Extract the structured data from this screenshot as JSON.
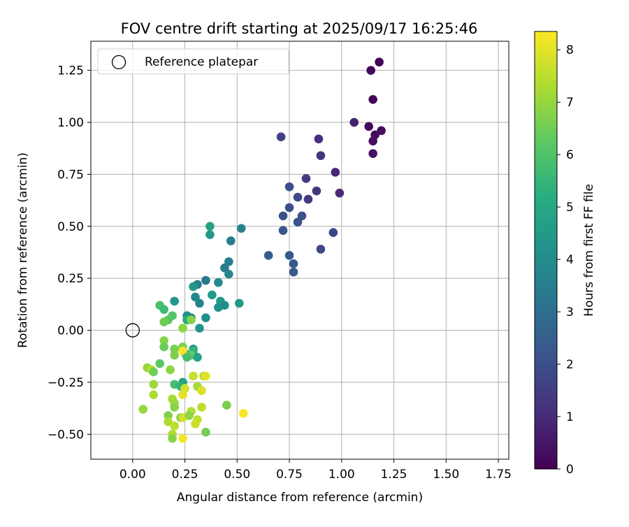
{
  "chart_data": {
    "type": "scatter",
    "title": "FOV centre drift starting at 2025/09/17 16:25:46",
    "xlabel": "Angular distance from reference (arcmin)",
    "ylabel": "Rotation from reference (arcmin)",
    "xlim": [
      -0.2,
      1.8
    ],
    "ylim": [
      -0.62,
      1.39
    ],
    "xticks": [
      0.0,
      0.25,
      0.5,
      0.75,
      1.0,
      1.25,
      1.5,
      1.75
    ],
    "xtick_labels": [
      "0.00",
      "0.25",
      "0.50",
      "0.75",
      "1.00",
      "1.25",
      "1.50",
      "1.75"
    ],
    "yticks": [
      -0.5,
      -0.25,
      0.0,
      0.25,
      0.5,
      0.75,
      1.0,
      1.25
    ],
    "ytick_labels": [
      "−0.50",
      "−0.25",
      "0.00",
      "0.25",
      "0.50",
      "0.75",
      "1.00",
      "1.25"
    ],
    "grid": true,
    "legend": {
      "position": "top-left",
      "entries": [
        "Reference platepar"
      ]
    },
    "reference_point": {
      "x": 0.0,
      "y": 0.0,
      "label": "Reference platepar"
    },
    "colorbar": {
      "label": "Hours from first FF file",
      "range": [
        0,
        8.35
      ],
      "ticks": [
        0,
        1,
        2,
        3,
        4,
        5,
        6,
        7,
        8
      ],
      "tick_labels": [
        "0",
        "1",
        "2",
        "3",
        "4",
        "5",
        "6",
        "7",
        "8"
      ],
      "colormap": "viridis"
    },
    "series": [
      {
        "name": "drift",
        "points": [
          [
            1.18,
            1.29,
            0.05
          ],
          [
            1.14,
            1.25,
            0.1
          ],
          [
            1.15,
            1.11,
            0.15
          ],
          [
            1.13,
            0.98,
            0.2
          ],
          [
            1.16,
            0.94,
            0.25
          ],
          [
            1.19,
            0.96,
            0.3
          ],
          [
            1.15,
            0.91,
            0.35
          ],
          [
            1.15,
            0.85,
            0.4
          ],
          [
            1.06,
            1.0,
            0.8
          ],
          [
            0.97,
            0.76,
            0.9
          ],
          [
            0.99,
            0.66,
            1.0
          ],
          [
            0.89,
            0.92,
            1.1
          ],
          [
            0.9,
            0.84,
            1.2
          ],
          [
            0.88,
            0.67,
            1.3
          ],
          [
            0.84,
            0.63,
            1.4
          ],
          [
            0.83,
            0.73,
            1.5
          ],
          [
            0.71,
            0.93,
            1.6
          ],
          [
            0.96,
            0.47,
            1.7
          ],
          [
            0.9,
            0.39,
            1.8
          ],
          [
            0.79,
            0.64,
            1.9
          ],
          [
            0.75,
            0.69,
            2.0
          ],
          [
            0.75,
            0.59,
            2.0
          ],
          [
            0.72,
            0.55,
            2.1
          ],
          [
            0.81,
            0.55,
            2.1
          ],
          [
            0.79,
            0.52,
            2.2
          ],
          [
            0.72,
            0.48,
            2.2
          ],
          [
            0.75,
            0.36,
            2.3
          ],
          [
            0.77,
            0.32,
            2.3
          ],
          [
            0.77,
            0.28,
            2.4
          ],
          [
            0.65,
            0.36,
            2.4
          ],
          [
            0.52,
            0.49,
            3.7
          ],
          [
            0.47,
            0.43,
            3.5
          ],
          [
            0.46,
            0.33,
            3.6
          ],
          [
            0.44,
            0.3,
            3.4
          ],
          [
            0.46,
            0.27,
            3.8
          ],
          [
            0.41,
            0.23,
            3.9
          ],
          [
            0.35,
            0.24,
            3.3
          ],
          [
            0.31,
            0.22,
            3.5
          ],
          [
            0.29,
            0.21,
            4.4
          ],
          [
            0.38,
            0.17,
            4.5
          ],
          [
            0.3,
            0.16,
            3.9
          ],
          [
            0.42,
            0.14,
            4.6
          ],
          [
            0.44,
            0.12,
            4.0
          ],
          [
            0.41,
            0.11,
            4.2
          ],
          [
            0.51,
            0.13,
            4.5
          ],
          [
            0.32,
            0.13,
            3.7
          ],
          [
            0.37,
            0.5,
            4.7
          ],
          [
            0.37,
            0.46,
            4.5
          ],
          [
            0.2,
            0.14,
            4.4
          ],
          [
            0.35,
            0.06,
            4.1
          ],
          [
            0.32,
            0.01,
            4.3
          ],
          [
            0.26,
            0.07,
            4.0
          ],
          [
            0.28,
            0.06,
            3.8
          ],
          [
            0.26,
            0.05,
            5.1
          ],
          [
            0.13,
            0.12,
            5.9
          ],
          [
            0.15,
            0.1,
            5.7
          ],
          [
            0.19,
            0.07,
            6.1
          ],
          [
            0.17,
            0.05,
            6.2
          ],
          [
            0.15,
            0.04,
            6.5
          ],
          [
            0.28,
            0.05,
            6.8
          ],
          [
            0.24,
            0.01,
            6.9
          ],
          [
            0.15,
            -0.05,
            6.8
          ],
          [
            0.15,
            -0.08,
            6.4
          ],
          [
            0.2,
            -0.09,
            6.6
          ],
          [
            0.24,
            -0.08,
            6.7
          ],
          [
            0.29,
            -0.09,
            4.5
          ],
          [
            0.29,
            -0.1,
            5.5
          ],
          [
            0.25,
            -0.11,
            5.2
          ],
          [
            0.28,
            -0.12,
            6.3
          ],
          [
            0.31,
            -0.13,
            4.8
          ],
          [
            0.2,
            -0.12,
            6.7
          ],
          [
            0.24,
            -0.1,
            8.3
          ],
          [
            0.26,
            -0.13,
            5.8
          ],
          [
            0.13,
            -0.16,
            6.2
          ],
          [
            0.07,
            -0.18,
            7.0
          ],
          [
            0.09,
            -0.19,
            7.4
          ],
          [
            0.1,
            -0.2,
            6.5
          ],
          [
            0.18,
            -0.19,
            6.9
          ],
          [
            0.24,
            -0.25,
            4.7
          ],
          [
            0.2,
            -0.26,
            5.8
          ],
          [
            0.1,
            -0.26,
            7.1
          ],
          [
            0.23,
            -0.27,
            5.4
          ],
          [
            0.29,
            -0.22,
            7.6
          ],
          [
            0.34,
            -0.22,
            7.4
          ],
          [
            0.35,
            -0.22,
            8.0
          ],
          [
            0.31,
            -0.27,
            7.2
          ],
          [
            0.25,
            -0.28,
            7.8
          ],
          [
            0.24,
            -0.31,
            8.0
          ],
          [
            0.33,
            -0.29,
            7.9
          ],
          [
            0.1,
            -0.31,
            7.3
          ],
          [
            0.19,
            -0.33,
            7.2
          ],
          [
            0.2,
            -0.35,
            7.1
          ],
          [
            0.2,
            -0.37,
            6.8
          ],
          [
            0.33,
            -0.37,
            7.5
          ],
          [
            0.05,
            -0.38,
            7.0
          ],
          [
            0.17,
            -0.41,
            6.7
          ],
          [
            0.17,
            -0.44,
            7.3
          ],
          [
            0.23,
            -0.42,
            6.6
          ],
          [
            0.24,
            -0.42,
            7.8
          ],
          [
            0.28,
            -0.39,
            7.4
          ],
          [
            0.27,
            -0.41,
            6.9
          ],
          [
            0.31,
            -0.43,
            7.6
          ],
          [
            0.3,
            -0.45,
            7.7
          ],
          [
            0.2,
            -0.46,
            7.5
          ],
          [
            0.19,
            -0.5,
            7.4
          ],
          [
            0.19,
            -0.52,
            6.8
          ],
          [
            0.24,
            -0.52,
            8.2
          ],
          [
            0.35,
            -0.49,
            6.6
          ],
          [
            0.45,
            -0.36,
            6.6
          ],
          [
            0.53,
            -0.4,
            8.3
          ]
        ]
      }
    ]
  }
}
